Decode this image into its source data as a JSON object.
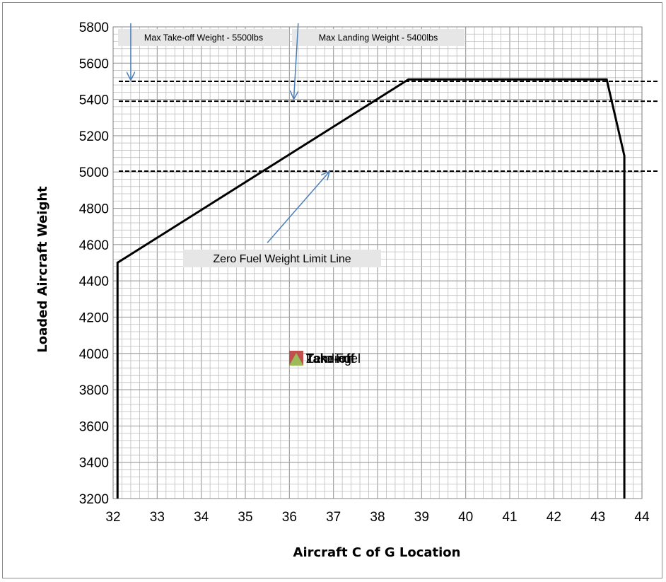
{
  "chart_data": {
    "type": "line",
    "title": "",
    "xlabel": "Aircraft C of G Location",
    "ylabel": "Loaded Aircraft  Weight",
    "xlim": [
      32,
      44
    ],
    "ylim": [
      3200,
      5800
    ],
    "x_ticks": [
      "32",
      "33",
      "34",
      "35",
      "36",
      "37",
      "38",
      "39",
      "40",
      "41",
      "42",
      "43",
      "44"
    ],
    "y_ticks": [
      "3200",
      "3400",
      "3600",
      "3800",
      "4000",
      "4200",
      "4400",
      "4600",
      "4800",
      "5000",
      "5200",
      "5400",
      "5600",
      "5800"
    ],
    "grid": true,
    "grid_minor": true,
    "envelope": {
      "x": [
        32.1,
        32.1,
        38.7,
        43.2,
        43.6,
        43.6
      ],
      "y": [
        3200,
        4500,
        5510,
        5510,
        5090,
        3200
      ],
      "color": "#000000"
    },
    "reference_lines": [
      {
        "y": 5500,
        "style": "dashed",
        "color": "#000000"
      },
      {
        "y": 5390,
        "style": "dashed",
        "color": "#000000"
      },
      {
        "y": 5005,
        "style": "dashed",
        "color": "#000000"
      }
    ],
    "annotations": [
      {
        "text": "Max Take-off Weight - 5500lbs",
        "arrow_from": [
          32.4,
          5820
        ],
        "arrow_to": [
          32.4,
          5510
        ]
      },
      {
        "text": "Max Landing Weight - 5400lbs",
        "arrow_from": [
          36.2,
          5820
        ],
        "arrow_to": [
          36.1,
          5405
        ]
      },
      {
        "text": "Zero Fuel Weight Limit Line",
        "arrow_from": [
          35.5,
          4610
        ],
        "arrow_to": [
          36.9,
          5000
        ]
      }
    ],
    "legend": {
      "placement": "center",
      "entries": [
        {
          "name": "Take-off",
          "color": "#c0504d"
        },
        {
          "name": "Landing",
          "color": "#9bbb59"
        },
        {
          "name": "Zero Fuel",
          "color": "#4f81bd"
        }
      ]
    }
  }
}
